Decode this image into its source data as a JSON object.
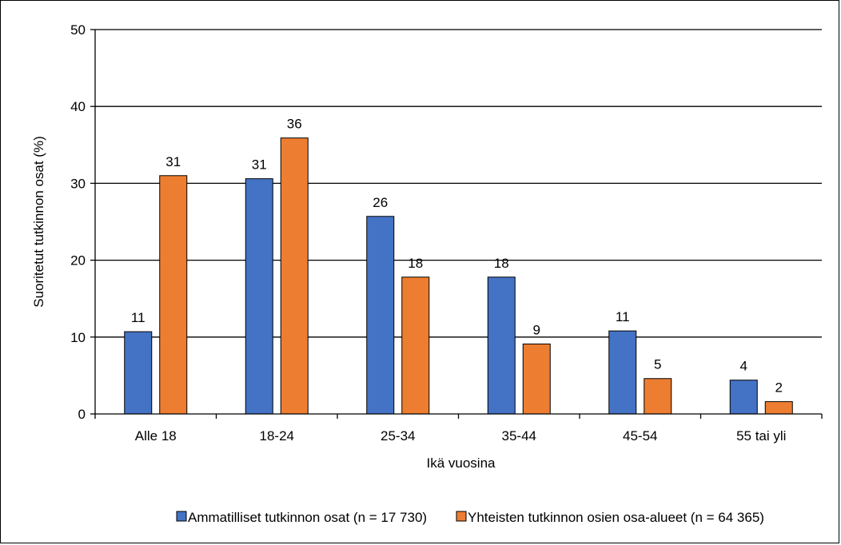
{
  "chart_data": {
    "type": "bar",
    "title": "",
    "xlabel": "Ikä vuosina",
    "ylabel": "Suoritetut tutkinnon osat (%)",
    "ylim": [
      0,
      50
    ],
    "yticks": [
      "0",
      "10",
      "20",
      "30",
      "40",
      "50"
    ],
    "grid": true,
    "legend_position": "bottom",
    "categories": [
      "Alle 18",
      "18-24",
      "25-34",
      "35-44",
      "45-54",
      "55 tai yli"
    ],
    "series": [
      {
        "name": "Ammatilliset tutkinnon osat (n = 17 730)",
        "color": "#4472C4",
        "values": [
          10.7,
          30.6,
          25.7,
          17.8,
          10.8,
          4.4
        ],
        "labels": [
          "11",
          "31",
          "26",
          "18",
          "11",
          "4"
        ]
      },
      {
        "name": "Yhteisten tutkinnon osien osa-alueet (n = 64 365)",
        "color": "#ED7D31",
        "values": [
          31.0,
          35.9,
          17.8,
          9.1,
          4.6,
          1.6
        ],
        "labels": [
          "31",
          "36",
          "18",
          "9",
          "5",
          "2"
        ]
      }
    ]
  }
}
